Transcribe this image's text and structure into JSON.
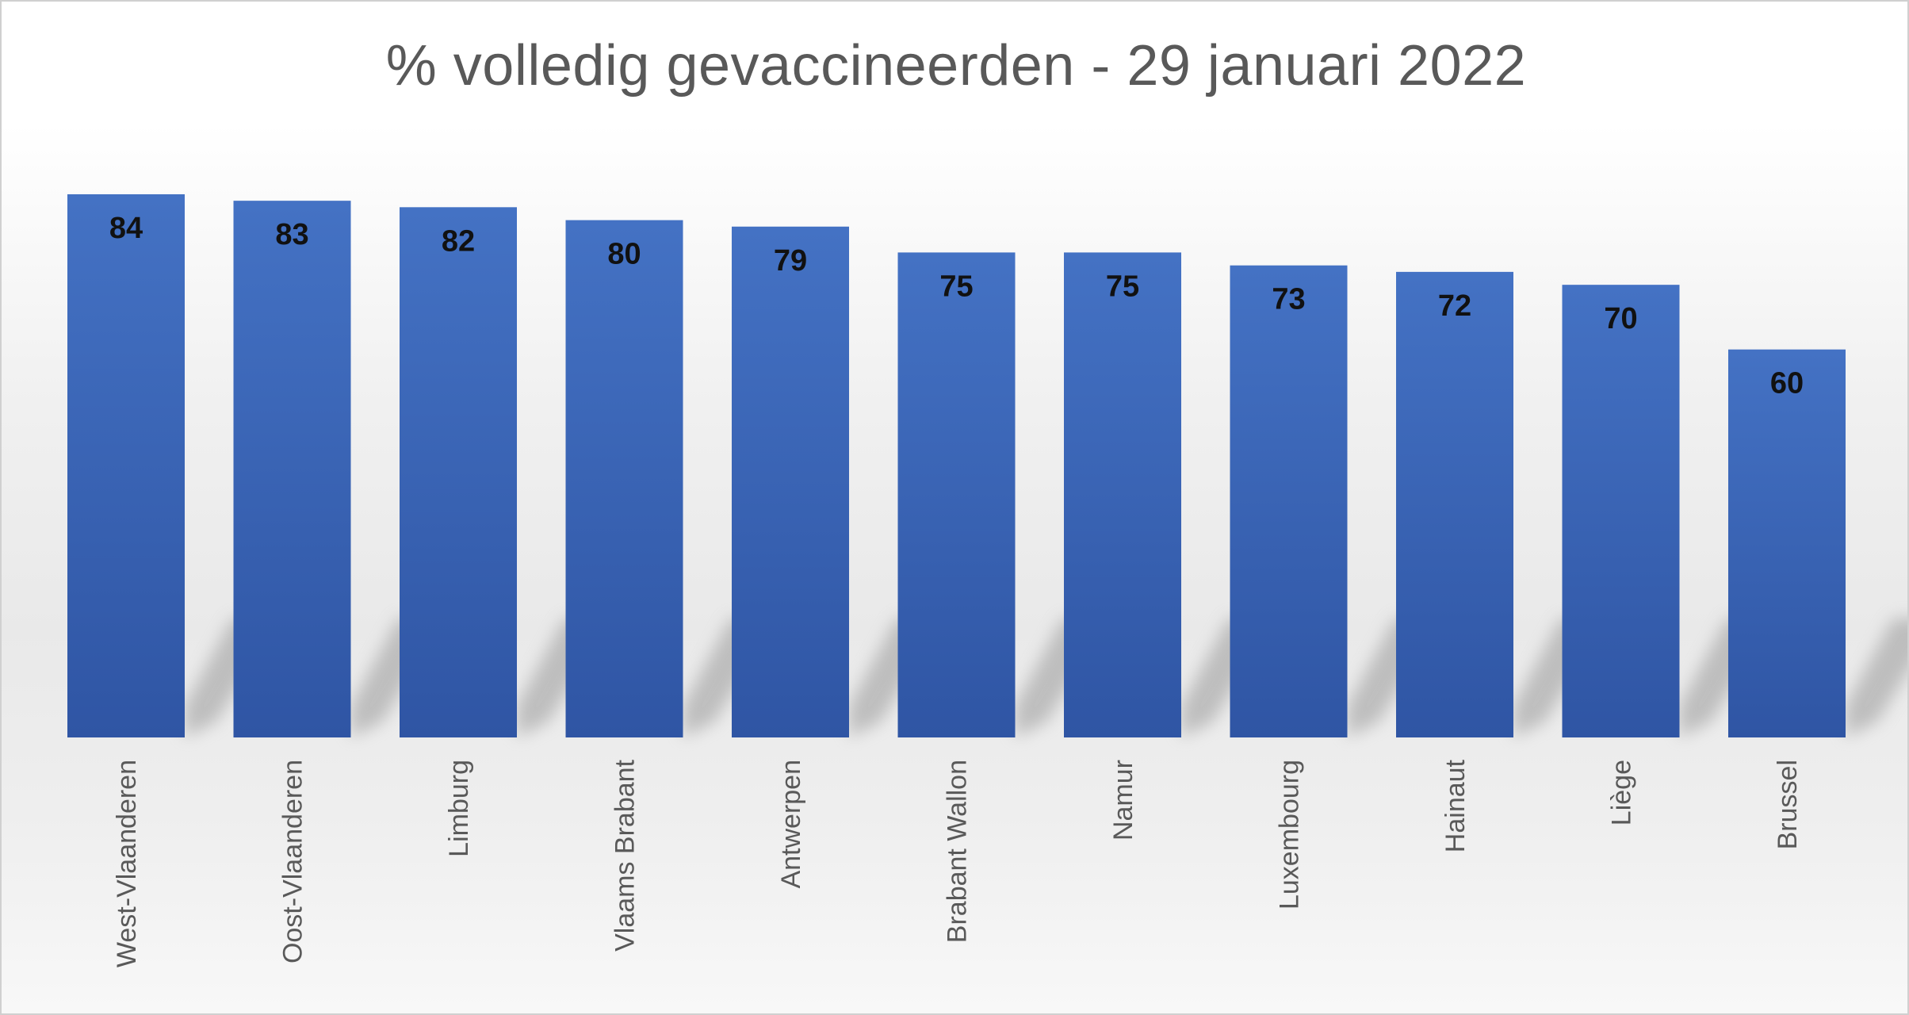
{
  "chart_data": {
    "type": "bar",
    "title": "% volledig gevaccineerden - 29 januari 2022",
    "xlabel": "",
    "ylabel": "",
    "categories": [
      "West-Vlaanderen",
      "Oost-Vlaanderen",
      "Limburg",
      "Vlaams Brabant",
      "Antwerpen",
      "Brabant Wallon",
      "Namur",
      "Luxembourg",
      "Hainaut",
      "Liège",
      "Brussel"
    ],
    "values": [
      84,
      83,
      82,
      80,
      79,
      75,
      75,
      73,
      72,
      70,
      60
    ],
    "ylim": [
      0,
      84
    ],
    "grid": false,
    "legend": "none",
    "data_labels": true,
    "bar_color_top": "#4472c4",
    "bar_color_bottom": "#2f55a4",
    "label_color": "#595959"
  }
}
